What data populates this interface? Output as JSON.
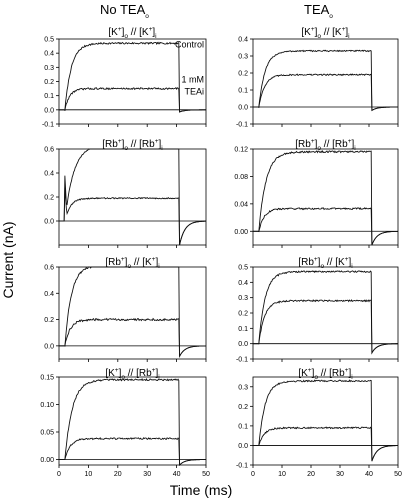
{
  "column_titles": [
    "No TEA",
    "TEA"
  ],
  "column_title_subscripts": [
    "o",
    "o"
  ],
  "y_axis_title": "Current (nA)",
  "x_axis_title": "Time (ms)",
  "chart_data": [
    {
      "type": "line",
      "panel": "row1-left",
      "title_parts": [
        "[K",
        "+",
        "]",
        "o",
        " // [K",
        "+",
        "]",
        "i"
      ],
      "ylim": [
        -0.1,
        0.5
      ],
      "yticks": [
        -0.1,
        0,
        0.1,
        0.2,
        0.3,
        0.4,
        0.5
      ],
      "ytick_labels": [
        "-0.1",
        "0.0",
        "0.1",
        "0.2",
        "0.3",
        "0.4",
        "0.5"
      ],
      "xlim": [
        0,
        50
      ],
      "xticks": [
        0,
        10,
        20,
        30,
        40,
        50
      ],
      "xtick_labels": [
        "0",
        "10",
        "20",
        "30",
        "40",
        "50"
      ],
      "x_tick_labels_shown": false,
      "annotations": [
        "Control",
        "1 mM",
        "TEAi"
      ],
      "series": [
        {
          "plateau": 0.47,
          "tau": 2.2,
          "spike": 0.0,
          "tail_min": -0.015,
          "noise": 0.006
        },
        {
          "plateau": 0.15,
          "tau": 1.6,
          "spike": 0.0,
          "tail_min": -0.015,
          "noise": 0.006
        }
      ]
    },
    {
      "type": "line",
      "panel": "row1-right",
      "title_parts": [
        "[K",
        "+",
        "]",
        "o",
        " // [K",
        "+",
        "]",
        "i"
      ],
      "ylim": [
        -0.1,
        0.4
      ],
      "yticks": [
        -0.1,
        0,
        0.1,
        0.2,
        0.3,
        0.4
      ],
      "ytick_labels": [
        "-0.1",
        "0.0",
        "0.1",
        "0.2",
        "0.3",
        "0.4"
      ],
      "xlim": [
        0,
        50
      ],
      "xticks": [
        0,
        10,
        20,
        30,
        40,
        50
      ],
      "xtick_labels": [
        "0",
        "10",
        "20",
        "30",
        "40",
        "50"
      ],
      "x_tick_labels_shown": false,
      "annotations": [],
      "series": [
        {
          "plateau": 0.33,
          "tau": 2.2,
          "spike": 0.0,
          "tail_min": -0.02,
          "noise": 0.004
        },
        {
          "plateau": 0.19,
          "tau": 2.0,
          "spike": 0.0,
          "tail_min": -0.02,
          "noise": 0.004
        }
      ]
    },
    {
      "type": "line",
      "panel": "row2-left",
      "title_parts": [
        "[Rb",
        "+",
        "]",
        "o",
        " // [Rb",
        "+",
        "]",
        "i"
      ],
      "ylim": [
        -0.2,
        0.6
      ],
      "yticks": [
        0,
        0.2,
        0.4,
        0.6
      ],
      "ytick_labels": [
        "0.0",
        "0.2",
        "0.4",
        "0.6"
      ],
      "xlim": [
        0,
        50
      ],
      "xticks": [
        0,
        10,
        20,
        30,
        40,
        50
      ],
      "xtick_labels": [
        "0",
        "10",
        "20",
        "30",
        "40",
        "50"
      ],
      "x_tick_labels_shown": false,
      "annotations": [],
      "series": [
        {
          "plateau": 0.64,
          "tau": 3.0,
          "spike": 0.38,
          "tail_min": -0.2,
          "noise": 0.005
        },
        {
          "plateau": 0.19,
          "tau": 1.8,
          "spike": 0.28,
          "tail_min": -0.2,
          "noise": 0.005
        }
      ]
    },
    {
      "type": "line",
      "panel": "row2-right",
      "title_parts": [
        "[Rb",
        "+",
        "]",
        "o",
        " // [Rb",
        "+",
        "]",
        "i"
      ],
      "ylim": [
        -0.02,
        0.12
      ],
      "yticks": [
        0,
        0.04,
        0.08,
        0.12
      ],
      "ytick_labels": [
        "0.00",
        "0.04",
        "0.08",
        "0.12"
      ],
      "xlim": [
        0,
        50
      ],
      "xticks": [
        0,
        10,
        20,
        30,
        40,
        50
      ],
      "xtick_labels": [
        "0",
        "10",
        "20",
        "30",
        "40",
        "50"
      ],
      "x_tick_labels_shown": false,
      "annotations": [],
      "series": [
        {
          "plateau": 0.116,
          "tau": 2.5,
          "spike": 0.0,
          "tail_min": -0.02,
          "noise": 0.0012
        },
        {
          "plateau": 0.033,
          "tau": 1.8,
          "spike": 0.0,
          "tail_min": -0.02,
          "noise": 0.0012
        }
      ]
    },
    {
      "type": "line",
      "panel": "row3-left",
      "title_parts": [
        "[Rb",
        "+",
        "]",
        "o",
        " // [K",
        "+",
        "]",
        "i"
      ],
      "ylim": [
        -0.1,
        0.6
      ],
      "yticks": [
        0,
        0.2,
        0.4,
        0.6
      ],
      "ytick_labels": [
        "0.0",
        "0.2",
        "0.4",
        "0.6"
      ],
      "xlim": [
        0,
        50
      ],
      "xticks": [
        0,
        10,
        20,
        30,
        40,
        50
      ],
      "xtick_labels": [
        "0",
        "10",
        "20",
        "30",
        "40",
        "50"
      ],
      "x_tick_labels_shown": false,
      "annotations": [],
      "series": [
        {
          "plateau": 0.61,
          "tau": 2.2,
          "spike": 0.0,
          "tail_min": -0.08,
          "noise": 0.008
        },
        {
          "plateau": 0.2,
          "tau": 1.8,
          "spike": 0.0,
          "tail_min": -0.08,
          "noise": 0.008
        }
      ]
    },
    {
      "type": "line",
      "panel": "row3-right",
      "title_parts": [
        "[Rb",
        "+",
        "]",
        "o",
        " // [K",
        "+",
        "]",
        "i"
      ],
      "ylim": [
        -0.1,
        0.5
      ],
      "yticks": [
        -0.1,
        0,
        0.1,
        0.2,
        0.3,
        0.4,
        0.5
      ],
      "ytick_labels": [
        "-0.1",
        "0.0",
        "0.1",
        "0.2",
        "0.3",
        "0.4",
        "0.5"
      ],
      "xlim": [
        0,
        50
      ],
      "xticks": [
        0,
        10,
        20,
        30,
        40,
        50
      ],
      "xtick_labels": [
        "0",
        "10",
        "20",
        "30",
        "40",
        "50"
      ],
      "x_tick_labels_shown": false,
      "annotations": [],
      "series": [
        {
          "plateau": 0.47,
          "tau": 2.2,
          "spike": 0.0,
          "tail_min": -0.06,
          "noise": 0.005
        },
        {
          "plateau": 0.28,
          "tau": 2.0,
          "spike": 0.0,
          "tail_min": -0.06,
          "noise": 0.005
        }
      ]
    },
    {
      "type": "line",
      "panel": "row4-left",
      "title_parts": [
        "[K",
        "+",
        "]",
        "o",
        " // [Rb",
        "+",
        "]",
        "i"
      ],
      "ylim": [
        -0.01,
        0.15
      ],
      "yticks": [
        0,
        0.05,
        0.1,
        0.15
      ],
      "ytick_labels": [
        "0.00",
        "0.05",
        "0.10",
        "0.15"
      ],
      "xlim": [
        0,
        50
      ],
      "xticks": [
        0,
        10,
        20,
        30,
        40,
        50
      ],
      "xtick_labels": [
        "0",
        "10",
        "20",
        "30",
        "40",
        "50"
      ],
      "x_tick_labels_shown": true,
      "annotations": [],
      "series": [
        {
          "plateau": 0.145,
          "tau": 2.5,
          "spike": 0.0,
          "tail_min": -0.01,
          "noise": 0.0015
        },
        {
          "plateau": 0.038,
          "tau": 1.8,
          "spike": 0.0,
          "tail_min": -0.01,
          "noise": 0.0015
        }
      ]
    },
    {
      "type": "line",
      "panel": "row4-right",
      "title_parts": [
        "[K",
        "+",
        "]",
        "o",
        " // [Rb",
        "+",
        "]",
        "i"
      ],
      "ylim": [
        -0.1,
        0.35
      ],
      "yticks": [
        -0.1,
        0,
        0.1,
        0.2,
        0.3
      ],
      "ytick_labels": [
        "-0.1",
        "0.0",
        "0.1",
        "0.2",
        "0.3"
      ],
      "xlim": [
        0,
        50
      ],
      "xticks": [
        0,
        10,
        20,
        30,
        40,
        50
      ],
      "xtick_labels": [
        "0",
        "10",
        "20",
        "30",
        "40",
        "50"
      ],
      "x_tick_labels_shown": true,
      "annotations": [],
      "series": [
        {
          "plateau": 0.33,
          "tau": 2.2,
          "spike": 0.0,
          "tail_min": -0.08,
          "noise": 0.004
        },
        {
          "plateau": 0.09,
          "tau": 1.8,
          "spike": 0.0,
          "tail_min": -0.08,
          "noise": 0.004
        }
      ]
    }
  ]
}
